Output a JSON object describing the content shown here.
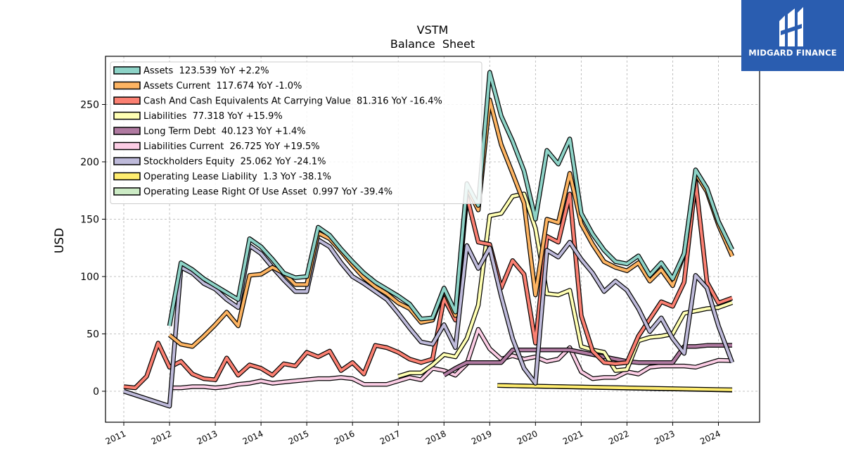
{
  "brand": {
    "name": "MIDGARD FINANCE",
    "bg_color": "#2a5db0",
    "icon": "midgard-logo-icon"
  },
  "chart_data": {
    "type": "line",
    "title": "VSTM",
    "subtitle": "Balance  Sheet",
    "ylabel": "USD",
    "xlabel": "",
    "ylim": [
      -27,
      292
    ],
    "xlim": [
      2010.6,
      2024.9
    ],
    "x_ticks": [
      "2011",
      "2012",
      "2013",
      "2014",
      "2015",
      "2016",
      "2017",
      "2018",
      "2019",
      "2020",
      "2021",
      "2022",
      "2023",
      "2024"
    ],
    "y_ticks": [
      0,
      50,
      100,
      150,
      200,
      250
    ],
    "grid": true,
    "legend_position": "top-left",
    "series": [
      {
        "name": "Operating Lease Right Of Use Asset  0.997 YoY -39.4%",
        "color": "#ccebc5",
        "x": [
          2019.17,
          2024.3
        ],
        "y": [
          5,
          1
        ]
      },
      {
        "name": "Operating Lease Liability  1.3 YoY -38.1%",
        "color": "#ffed6f",
        "x": [
          2019.17,
          2024.3
        ],
        "y": [
          5,
          1.3
        ]
      },
      {
        "name": "Liabilities Current  26.725 YoY +19.5%",
        "color": "#fccde5",
        "x": [
          2012.0,
          2012.25,
          2012.5,
          2012.75,
          2013.0,
          2013.25,
          2013.5,
          2013.75,
          2014.0,
          2014.25,
          2014.5,
          2014.75,
          2015.0,
          2015.25,
          2015.5,
          2015.75,
          2016.0,
          2016.25,
          2016.5,
          2016.75,
          2017.0,
          2017.25,
          2017.5,
          2017.75,
          2018.0,
          2018.25,
          2018.5,
          2018.75,
          2019.0,
          2019.25,
          2019.5,
          2019.75,
          2020.0,
          2020.25,
          2020.5,
          2020.75,
          2021.0,
          2021.25,
          2021.5,
          2021.75,
          2022.0,
          2022.25,
          2022.5,
          2022.75,
          2023.0,
          2023.25,
          2023.5,
          2023.75,
          2024.0,
          2024.3
        ],
        "y": [
          3,
          3,
          4,
          4,
          3,
          4,
          6,
          7,
          9,
          7,
          8,
          9,
          10,
          11,
          11,
          12,
          11,
          6,
          6,
          6,
          9,
          12,
          10,
          20,
          18,
          14,
          24,
          54,
          37,
          28,
          31,
          28,
          30,
          26,
          28,
          38,
          17,
          11,
          12,
          12,
          17,
          15,
          21,
          22,
          22,
          22,
          21,
          24,
          27,
          26.7
        ]
      },
      {
        "name": "Long Term Debt  40.123 YoY +1.4%",
        "color": "#b07aa1",
        "x": [
          2018.0,
          2018.25,
          2018.5,
          2018.75,
          2019.0,
          2019.25,
          2019.5,
          2019.75,
          2020.0,
          2020.25,
          2020.5,
          2020.75,
          2021.0,
          2021.25,
          2021.5,
          2021.75,
          2022.0,
          2022.25,
          2022.5,
          2022.75,
          2023.0,
          2023.25,
          2023.5,
          2023.75,
          2024.0,
          2024.3
        ],
        "y": [
          14,
          20,
          25,
          25,
          25,
          25,
          36,
          36,
          36,
          36,
          36,
          36,
          34,
          32,
          30,
          28,
          26,
          25,
          25,
          25,
          25,
          39,
          39,
          40,
          40,
          40.1
        ]
      },
      {
        "name": "Liabilities  77.318 YoY +15.9%",
        "color": "#ffffb3",
        "x": [
          2017.0,
          2017.25,
          2017.5,
          2017.75,
          2018.0,
          2018.25,
          2018.5,
          2018.75,
          2019.0,
          2019.25,
          2019.5,
          2019.75,
          2020.0,
          2020.25,
          2020.5,
          2020.75,
          2021.0,
          2021.25,
          2021.5,
          2021.75,
          2022.0,
          2022.25,
          2022.5,
          2022.75,
          2023.0,
          2023.25,
          2023.5,
          2023.75,
          2024.0,
          2024.3
        ],
        "y": [
          13,
          16,
          16,
          23,
          32,
          30,
          46,
          75,
          153,
          155,
          170,
          172,
          142,
          85,
          84,
          88,
          39,
          36,
          34,
          18,
          19,
          44,
          47,
          48,
          50,
          68,
          70,
          72,
          73,
          77.3
        ]
      },
      {
        "name": "Cash And Cash Equivalents At Carrying Value  81.316 YoY -16.4%",
        "color": "#fb8072",
        "x": [
          2011.0,
          2011.25,
          2011.5,
          2011.75,
          2012.0,
          2012.25,
          2012.5,
          2012.75,
          2013.0,
          2013.25,
          2013.5,
          2013.75,
          2014.0,
          2014.25,
          2014.5,
          2014.75,
          2015.0,
          2015.25,
          2015.5,
          2015.75,
          2016.0,
          2016.25,
          2016.5,
          2016.75,
          2017.0,
          2017.25,
          2017.5,
          2017.75,
          2018.0,
          2018.25,
          2018.5,
          2018.75,
          2019.0,
          2019.25,
          2019.5,
          2019.75,
          2020.0,
          2020.25,
          2020.5,
          2020.75,
          2021.0,
          2021.25,
          2021.5,
          2021.75,
          2022.0,
          2022.25,
          2022.5,
          2022.75,
          2023.0,
          2023.25,
          2023.5,
          2023.75,
          2024.0,
          2024.3
        ],
        "y": [
          4,
          3,
          13,
          42,
          21,
          26,
          15,
          11,
          10,
          29,
          14,
          23,
          20,
          14,
          24,
          22,
          34,
          30,
          35,
          18,
          25,
          15,
          40,
          38,
          34,
          28,
          25,
          28,
          81,
          62,
          170,
          130,
          128,
          90,
          114,
          102,
          42,
          135,
          130,
          172,
          66,
          35,
          25,
          24,
          25,
          48,
          63,
          78,
          74,
          95,
          183,
          95,
          77,
          81.3
        ]
      },
      {
        "name": "Stockholders Equity  25.062 YoY -24.1%",
        "color": "#bebada",
        "x": [
          2011.0,
          2012.0,
          2012.25,
          2012.5,
          2012.75,
          2013.0,
          2013.25,
          2013.5,
          2013.75,
          2014.0,
          2014.25,
          2014.5,
          2014.75,
          2015.0,
          2015.25,
          2015.5,
          2015.75,
          2016.0,
          2016.25,
          2016.5,
          2016.75,
          2017.0,
          2017.25,
          2017.5,
          2017.75,
          2018.0,
          2018.25,
          2018.5,
          2018.75,
          2019.0,
          2019.25,
          2019.5,
          2019.75,
          2020.0,
          2020.25,
          2020.5,
          2020.75,
          2021.0,
          2021.25,
          2021.5,
          2021.75,
          2022.0,
          2022.25,
          2022.5,
          2022.75,
          2023.0,
          2023.25,
          2023.5,
          2023.75,
          2024.0,
          2024.3
        ],
        "y": [
          0,
          -13,
          108,
          103,
          94,
          89,
          80,
          73,
          127,
          120,
          108,
          97,
          87,
          87,
          132,
          126,
          112,
          100,
          94,
          87,
          80,
          68,
          55,
          43,
          41,
          58,
          38,
          127,
          107,
          125,
          83,
          46,
          20,
          7,
          123,
          117,
          130,
          115,
          103,
          87,
          96,
          88,
          72,
          52,
          64,
          46,
          33,
          101,
          90,
          57,
          25.1
        ]
      },
      {
        "name": "Assets Current  117.674 YoY -1.0%",
        "color": "#fdb462",
        "x": [
          2012.0,
          2012.25,
          2012.5,
          2012.75,
          2013.0,
          2013.25,
          2013.5,
          2013.75,
          2014.0,
          2014.25,
          2014.5,
          2014.75,
          2015.0,
          2015.25,
          2015.5,
          2015.75,
          2016.0,
          2016.25,
          2016.5,
          2016.75,
          2017.0,
          2017.25,
          2017.5,
          2017.75,
          2018.0,
          2018.25,
          2018.5,
          2018.75,
          2019.0,
          2019.25,
          2019.5,
          2019.75,
          2020.0,
          2020.25,
          2020.5,
          2020.75,
          2021.0,
          2021.25,
          2021.5,
          2021.75,
          2022.0,
          2022.25,
          2022.5,
          2022.75,
          2023.0,
          2023.25,
          2023.5,
          2023.75,
          2024.0,
          2024.3
        ],
        "y": [
          49,
          41,
          39,
          48,
          58,
          69,
          57,
          101,
          102,
          108,
          103,
          93,
          93,
          138,
          133,
          122,
          110,
          99,
          91,
          85,
          77,
          72,
          60,
          62,
          88,
          66,
          178,
          158,
          254,
          215,
          190,
          164,
          84,
          150,
          147,
          190,
          146,
          128,
          113,
          108,
          105,
          112,
          96,
          106,
          92,
          120,
          190,
          174,
          145,
          117.7
        ]
      },
      {
        "name": "Assets  123.539 YoY +2.2%",
        "color": "#8dd3c7",
        "x": [
          2012.0,
          2012.25,
          2012.5,
          2012.75,
          2013.0,
          2013.25,
          2013.5,
          2013.75,
          2014.0,
          2014.25,
          2014.5,
          2014.75,
          2015.0,
          2015.25,
          2015.5,
          2015.75,
          2016.0,
          2016.25,
          2016.5,
          2016.75,
          2017.0,
          2017.25,
          2017.5,
          2017.75,
          2018.0,
          2018.25,
          2018.5,
          2018.75,
          2019.0,
          2019.25,
          2019.5,
          2019.75,
          2020.0,
          2020.25,
          2020.5,
          2020.75,
          2021.0,
          2021.25,
          2021.5,
          2021.75,
          2022.0,
          2022.25,
          2022.5,
          2022.75,
          2023.0,
          2023.25,
          2023.5,
          2023.75,
          2024.0,
          2024.3
        ],
        "y": [
          57,
          112,
          106,
          98,
          92,
          86,
          80,
          133,
          126,
          115,
          103,
          99,
          100,
          143,
          136,
          124,
          113,
          103,
          95,
          89,
          83,
          76,
          63,
          64,
          90,
          69,
          181,
          162,
          278,
          240,
          218,
          192,
          150,
          210,
          198,
          220,
          155,
          137,
          123,
          113,
          111,
          118,
          101,
          112,
          98,
          120,
          193,
          177,
          148,
          123.5
        ]
      }
    ],
    "legend_entries": [
      {
        "label": "Assets  123.539 YoY +2.2%",
        "color": "#8dd3c7"
      },
      {
        "label": "Assets Current  117.674 YoY -1.0%",
        "color": "#fdb462"
      },
      {
        "label": "Cash And Cash Equivalents At Carrying Value  81.316 YoY -16.4%",
        "color": "#fb8072"
      },
      {
        "label": "Liabilities  77.318 YoY +15.9%",
        "color": "#ffffb3"
      },
      {
        "label": "Long Term Debt  40.123 YoY +1.4%",
        "color": "#b07aa1"
      },
      {
        "label": "Liabilities Current  26.725 YoY +19.5%",
        "color": "#fccde5"
      },
      {
        "label": "Stockholders Equity  25.062 YoY -24.1%",
        "color": "#bebada"
      },
      {
        "label": "Operating Lease Liability  1.3 YoY -38.1%",
        "color": "#ffed6f"
      },
      {
        "label": "Operating Lease Right Of Use Asset  0.997 YoY -39.4%",
        "color": "#ccebc5"
      }
    ]
  }
}
